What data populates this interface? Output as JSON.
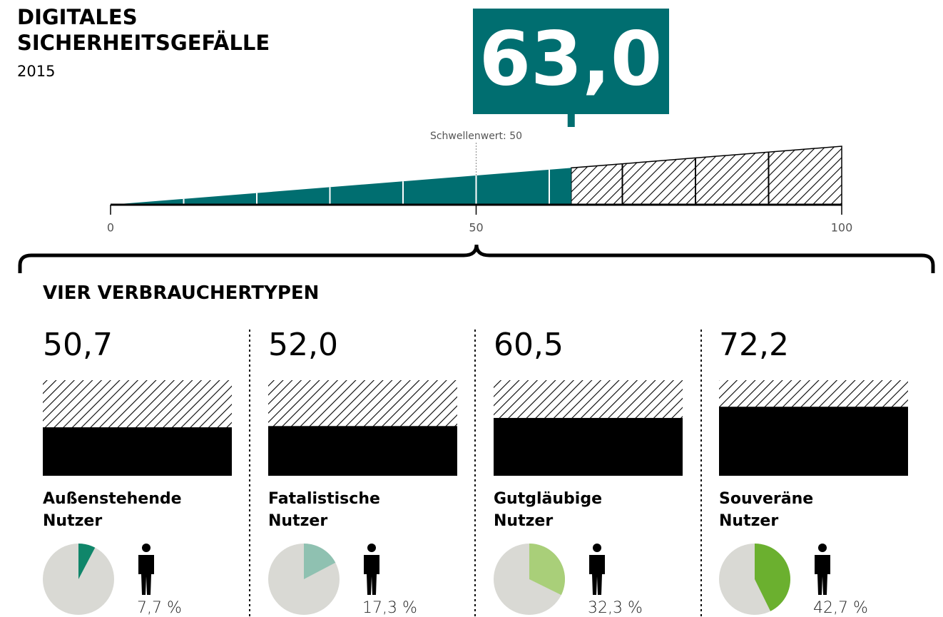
{
  "header": {
    "title": "DIGITALES\nSICHERHEITSGEFÄLLE",
    "year": "2015"
  },
  "index": {
    "value": 63.0,
    "label": "63,0",
    "color": "#006e70",
    "threshold": {
      "value": 50,
      "label": "Schwellenwert: 50"
    },
    "scale": {
      "range": [
        0,
        100
      ],
      "ticks": [
        0,
        50,
        100
      ],
      "minor_ticks": [
        10,
        20,
        30,
        40,
        50,
        60,
        70,
        80,
        90
      ]
    }
  },
  "section_title": "VIER VERBRAUCHERTYPEN",
  "types": [
    {
      "value": 50.7,
      "label": "50,7",
      "name": "Außenstehende\nNutzer",
      "share": 7.7,
      "share_label": "7,7 %",
      "color": "#10866a"
    },
    {
      "value": 52.0,
      "label": "52,0",
      "name": "Fatalistische\nNutzer",
      "share": 17.3,
      "share_label": "17,3 %",
      "color": "#8fc1b1"
    },
    {
      "value": 60.5,
      "label": "60,5",
      "name": "Gutgläubige\nNutzer",
      "share": 32.3,
      "share_label": "32,3 %",
      "color": "#a9cf79"
    },
    {
      "value": 72.2,
      "label": "72,2",
      "name": "Souveräne\nNutzer",
      "share": 42.7,
      "share_label": "42,7 %",
      "color": "#6bb02f"
    }
  ]
}
